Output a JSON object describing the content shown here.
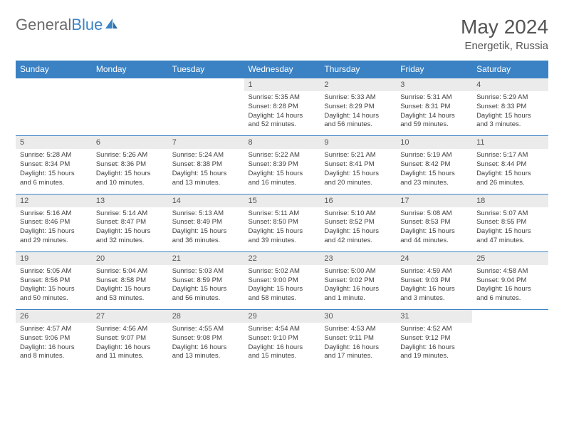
{
  "logo": {
    "part1": "General",
    "part2": "Blue"
  },
  "title": "May 2024",
  "location": "Energetik, Russia",
  "colors": {
    "header_bg": "#3b82c4",
    "header_text": "#ffffff",
    "daynum_bg": "#ebebeb",
    "border": "#3b82c4",
    "text": "#404040"
  },
  "dow": [
    "Sunday",
    "Monday",
    "Tuesday",
    "Wednesday",
    "Thursday",
    "Friday",
    "Saturday"
  ],
  "weeks": [
    [
      null,
      null,
      null,
      {
        "n": "1",
        "sr": "Sunrise: 5:35 AM",
        "ss": "Sunset: 8:28 PM",
        "dl": "Daylight: 14 hours and 52 minutes."
      },
      {
        "n": "2",
        "sr": "Sunrise: 5:33 AM",
        "ss": "Sunset: 8:29 PM",
        "dl": "Daylight: 14 hours and 56 minutes."
      },
      {
        "n": "3",
        "sr": "Sunrise: 5:31 AM",
        "ss": "Sunset: 8:31 PM",
        "dl": "Daylight: 14 hours and 59 minutes."
      },
      {
        "n": "4",
        "sr": "Sunrise: 5:29 AM",
        "ss": "Sunset: 8:33 PM",
        "dl": "Daylight: 15 hours and 3 minutes."
      }
    ],
    [
      {
        "n": "5",
        "sr": "Sunrise: 5:28 AM",
        "ss": "Sunset: 8:34 PM",
        "dl": "Daylight: 15 hours and 6 minutes."
      },
      {
        "n": "6",
        "sr": "Sunrise: 5:26 AM",
        "ss": "Sunset: 8:36 PM",
        "dl": "Daylight: 15 hours and 10 minutes."
      },
      {
        "n": "7",
        "sr": "Sunrise: 5:24 AM",
        "ss": "Sunset: 8:38 PM",
        "dl": "Daylight: 15 hours and 13 minutes."
      },
      {
        "n": "8",
        "sr": "Sunrise: 5:22 AM",
        "ss": "Sunset: 8:39 PM",
        "dl": "Daylight: 15 hours and 16 minutes."
      },
      {
        "n": "9",
        "sr": "Sunrise: 5:21 AM",
        "ss": "Sunset: 8:41 PM",
        "dl": "Daylight: 15 hours and 20 minutes."
      },
      {
        "n": "10",
        "sr": "Sunrise: 5:19 AM",
        "ss": "Sunset: 8:42 PM",
        "dl": "Daylight: 15 hours and 23 minutes."
      },
      {
        "n": "11",
        "sr": "Sunrise: 5:17 AM",
        "ss": "Sunset: 8:44 PM",
        "dl": "Daylight: 15 hours and 26 minutes."
      }
    ],
    [
      {
        "n": "12",
        "sr": "Sunrise: 5:16 AM",
        "ss": "Sunset: 8:46 PM",
        "dl": "Daylight: 15 hours and 29 minutes."
      },
      {
        "n": "13",
        "sr": "Sunrise: 5:14 AM",
        "ss": "Sunset: 8:47 PM",
        "dl": "Daylight: 15 hours and 32 minutes."
      },
      {
        "n": "14",
        "sr": "Sunrise: 5:13 AM",
        "ss": "Sunset: 8:49 PM",
        "dl": "Daylight: 15 hours and 36 minutes."
      },
      {
        "n": "15",
        "sr": "Sunrise: 5:11 AM",
        "ss": "Sunset: 8:50 PM",
        "dl": "Daylight: 15 hours and 39 minutes."
      },
      {
        "n": "16",
        "sr": "Sunrise: 5:10 AM",
        "ss": "Sunset: 8:52 PM",
        "dl": "Daylight: 15 hours and 42 minutes."
      },
      {
        "n": "17",
        "sr": "Sunrise: 5:08 AM",
        "ss": "Sunset: 8:53 PM",
        "dl": "Daylight: 15 hours and 44 minutes."
      },
      {
        "n": "18",
        "sr": "Sunrise: 5:07 AM",
        "ss": "Sunset: 8:55 PM",
        "dl": "Daylight: 15 hours and 47 minutes."
      }
    ],
    [
      {
        "n": "19",
        "sr": "Sunrise: 5:05 AM",
        "ss": "Sunset: 8:56 PM",
        "dl": "Daylight: 15 hours and 50 minutes."
      },
      {
        "n": "20",
        "sr": "Sunrise: 5:04 AM",
        "ss": "Sunset: 8:58 PM",
        "dl": "Daylight: 15 hours and 53 minutes."
      },
      {
        "n": "21",
        "sr": "Sunrise: 5:03 AM",
        "ss": "Sunset: 8:59 PM",
        "dl": "Daylight: 15 hours and 56 minutes."
      },
      {
        "n": "22",
        "sr": "Sunrise: 5:02 AM",
        "ss": "Sunset: 9:00 PM",
        "dl": "Daylight: 15 hours and 58 minutes."
      },
      {
        "n": "23",
        "sr": "Sunrise: 5:00 AM",
        "ss": "Sunset: 9:02 PM",
        "dl": "Daylight: 16 hours and 1 minute."
      },
      {
        "n": "24",
        "sr": "Sunrise: 4:59 AM",
        "ss": "Sunset: 9:03 PM",
        "dl": "Daylight: 16 hours and 3 minutes."
      },
      {
        "n": "25",
        "sr": "Sunrise: 4:58 AM",
        "ss": "Sunset: 9:04 PM",
        "dl": "Daylight: 16 hours and 6 minutes."
      }
    ],
    [
      {
        "n": "26",
        "sr": "Sunrise: 4:57 AM",
        "ss": "Sunset: 9:06 PM",
        "dl": "Daylight: 16 hours and 8 minutes."
      },
      {
        "n": "27",
        "sr": "Sunrise: 4:56 AM",
        "ss": "Sunset: 9:07 PM",
        "dl": "Daylight: 16 hours and 11 minutes."
      },
      {
        "n": "28",
        "sr": "Sunrise: 4:55 AM",
        "ss": "Sunset: 9:08 PM",
        "dl": "Daylight: 16 hours and 13 minutes."
      },
      {
        "n": "29",
        "sr": "Sunrise: 4:54 AM",
        "ss": "Sunset: 9:10 PM",
        "dl": "Daylight: 16 hours and 15 minutes."
      },
      {
        "n": "30",
        "sr": "Sunrise: 4:53 AM",
        "ss": "Sunset: 9:11 PM",
        "dl": "Daylight: 16 hours and 17 minutes."
      },
      {
        "n": "31",
        "sr": "Sunrise: 4:52 AM",
        "ss": "Sunset: 9:12 PM",
        "dl": "Daylight: 16 hours and 19 minutes."
      },
      null
    ]
  ]
}
